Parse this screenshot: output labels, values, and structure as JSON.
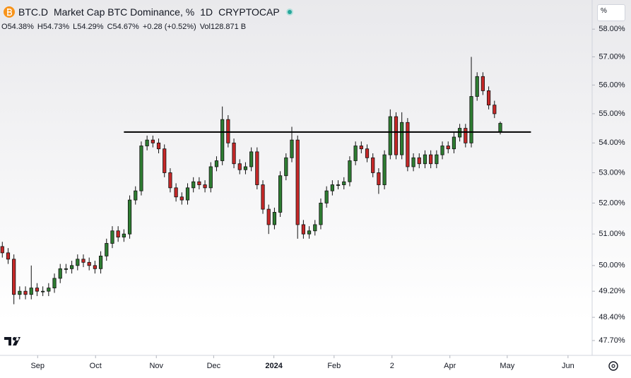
{
  "chart_data": {
    "type": "candlestick",
    "symbol": "BTC.D",
    "title": "Market Cap BTC Dominance, %",
    "interval": "1D",
    "exchange": "CRYPTOCAP",
    "scale_button": "%",
    "legend": {
      "labels": [
        "O",
        "H",
        "L",
        "C"
      ],
      "values": [
        54.38,
        54.73,
        54.29,
        54.67
      ],
      "value_labels": [
        "54.38%",
        "54.73%",
        "54.29%",
        "54.67%"
      ],
      "change": "+0.28 (+0.52%)",
      "volume_label": "Vol",
      "volume": "128.871 B"
    },
    "log_scale": true,
    "grid": false,
    "up_color": "#2e7d32",
    "down_color": "#c62828",
    "wick_color": "#111111",
    "ylim": [
      47.32,
      58.94
    ],
    "yticks": [
      {
        "value": 47.7,
        "label": "47.70%"
      },
      {
        "value": 48.4,
        "label": "48.40%"
      },
      {
        "value": 49.2,
        "label": "49.20%"
      },
      {
        "value": 50,
        "label": "50.00%"
      },
      {
        "value": 51,
        "label": "51.00%"
      },
      {
        "value": 52,
        "label": "52.00%"
      },
      {
        "value": 53,
        "label": "53.00%"
      },
      {
        "value": 54,
        "label": "54.00%"
      },
      {
        "value": 55,
        "label": "55.00%"
      },
      {
        "value": 56,
        "label": "56.00%"
      },
      {
        "value": 57,
        "label": "57.00%"
      },
      {
        "value": 58,
        "label": "58.00%"
      }
    ],
    "xlim": [
      -0.4,
      101.5
    ],
    "xticks": [
      {
        "value": 6.1,
        "label": "Sep"
      },
      {
        "value": 16.1,
        "label": "Oct"
      },
      {
        "value": 26.6,
        "label": "Nov"
      },
      {
        "value": 36.5,
        "label": "Dec"
      },
      {
        "value": 46.9,
        "label": "2024"
      },
      {
        "value": 57.3,
        "label": "Feb"
      },
      {
        "value": 67.3,
        "label": "2"
      },
      {
        "value": 77.3,
        "label": "Apr"
      },
      {
        "value": 87.2,
        "label": "May"
      },
      {
        "value": 97.7,
        "label": "Jun"
      }
    ],
    "level_line": {
      "value": 54.37,
      "from": 21,
      "to": 91.3,
      "color": "#000000"
    },
    "open": [
      50.6,
      50.4,
      50.2,
      49.1,
      49.2,
      49.1,
      49.3,
      49.2,
      49.2,
      49.3,
      49.6,
      49.9,
      49.9,
      50.0,
      50.2,
      50.1,
      50.0,
      49.9,
      50.3,
      50.7,
      51.1,
      50.9,
      51.0,
      52.1,
      52.4,
      53.9,
      54.1,
      54.0,
      53.8,
      53.0,
      52.5,
      52.2,
      52.1,
      52.5,
      52.7,
      52.6,
      52.5,
      53.2,
      53.4,
      54.8,
      54.0,
      53.3,
      53.1,
      53.2,
      53.7,
      52.6,
      51.8,
      51.3,
      51.7,
      52.9,
      53.5,
      54.1,
      51.3,
      51.0,
      51.1,
      51.3,
      52.0,
      52.4,
      52.6,
      52.6,
      52.7,
      53.4,
      53.9,
      53.8,
      53.5,
      53.0,
      52.6,
      53.6,
      54.9,
      53.6,
      54.7,
      53.2,
      53.5,
      53.3,
      53.6,
      53.3,
      53.6,
      53.9,
      53.8,
      54.2,
      54.5,
      54.0,
      55.6,
      56.3,
      55.8,
      55.3,
      54.38
    ],
    "high": [
      50.75,
      50.55,
      50.35,
      49.35,
      49.35,
      50.0,
      49.45,
      49.35,
      49.45,
      49.75,
      50.05,
      50.05,
      50.15,
      50.35,
      50.35,
      50.25,
      50.15,
      50.45,
      50.85,
      51.25,
      51.25,
      51.15,
      52.25,
      52.55,
      54.05,
      54.25,
      54.25,
      54.15,
      53.95,
      53.15,
      52.65,
      52.35,
      52.65,
      52.85,
      52.85,
      52.75,
      53.35,
      53.55,
      55.25,
      54.95,
      54.15,
      53.45,
      53.35,
      53.85,
      53.85,
      52.75,
      51.95,
      51.85,
      53.05,
      53.65,
      54.55,
      54.25,
      51.45,
      51.25,
      51.45,
      52.15,
      52.55,
      52.75,
      52.75,
      52.85,
      53.55,
      54.05,
      54.05,
      53.95,
      53.65,
      53.15,
      53.75,
      55.15,
      55.05,
      55.05,
      54.85,
      53.65,
      53.65,
      53.75,
      53.75,
      53.75,
      54.05,
      54.05,
      54.35,
      54.65,
      54.65,
      57.0,
      56.45,
      56.45,
      55.95,
      55.45,
      54.73
    ],
    "low": [
      50.25,
      50.05,
      48.8,
      48.95,
      48.95,
      48.95,
      49.05,
      49.05,
      49.05,
      49.15,
      49.45,
      49.75,
      49.75,
      49.85,
      49.95,
      49.85,
      49.75,
      49.75,
      50.15,
      50.55,
      50.75,
      50.75,
      50.85,
      51.95,
      52.25,
      53.75,
      53.85,
      53.65,
      52.85,
      52.35,
      52.05,
      51.95,
      51.95,
      52.35,
      52.45,
      52.35,
      52.35,
      53.05,
      53.25,
      53.85,
      53.15,
      52.95,
      52.95,
      53.05,
      52.45,
      51.65,
      51.0,
      51.15,
      51.55,
      52.75,
      53.35,
      50.85,
      50.85,
      50.85,
      50.95,
      51.15,
      51.85,
      52.25,
      52.45,
      52.45,
      52.55,
      53.25,
      53.65,
      53.35,
      52.85,
      52.3,
      52.45,
      53.45,
      53.45,
      53.45,
      53.05,
      53.05,
      53.15,
      53.15,
      53.15,
      53.15,
      53.45,
      53.65,
      53.65,
      54.05,
      53.85,
      53.85,
      55.45,
      55.65,
      55.15,
      54.85,
      54.29
    ],
    "close": [
      50.4,
      50.2,
      49.1,
      49.2,
      49.1,
      49.3,
      49.2,
      49.2,
      49.3,
      49.6,
      49.9,
      49.9,
      50.0,
      50.2,
      50.1,
      50.0,
      49.9,
      50.3,
      50.7,
      51.1,
      50.9,
      51.0,
      52.1,
      52.4,
      53.9,
      54.1,
      54.0,
      53.8,
      53.0,
      52.5,
      52.2,
      52.1,
      52.5,
      52.7,
      52.6,
      52.5,
      53.2,
      53.4,
      54.8,
      54.0,
      53.3,
      53.1,
      53.2,
      53.7,
      52.6,
      51.8,
      51.3,
      51.7,
      52.9,
      53.5,
      54.1,
      51.3,
      51.0,
      51.1,
      51.3,
      52.0,
      52.4,
      52.6,
      52.6,
      52.7,
      53.4,
      53.9,
      53.8,
      53.5,
      53.0,
      52.6,
      53.6,
      54.9,
      53.6,
      54.7,
      53.2,
      53.5,
      53.3,
      53.6,
      53.3,
      53.6,
      53.9,
      53.8,
      54.2,
      54.5,
      54.0,
      55.6,
      56.3,
      55.8,
      55.3,
      55.0,
      54.67
    ]
  }
}
